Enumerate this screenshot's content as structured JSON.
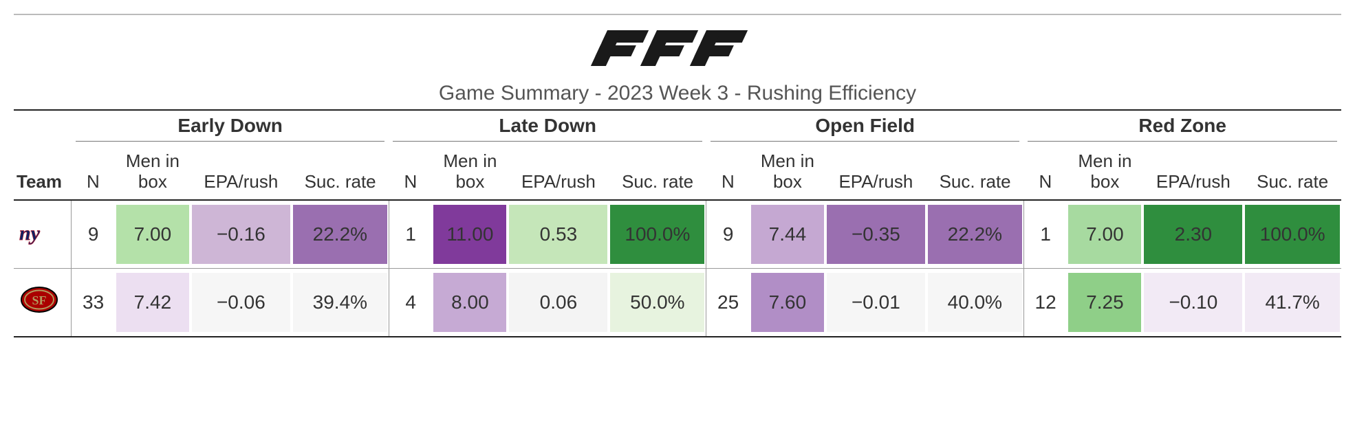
{
  "header": {
    "brand": "PFF",
    "subtitle": "Game Summary - 2023 Week 3 - Rushing Efficiency"
  },
  "columns": {
    "team": "Team",
    "groups": [
      "Early Down",
      "Late Down",
      "Open Field",
      "Red Zone"
    ],
    "sub": {
      "n": "N",
      "box": "Men in\nbox",
      "epa": "EPA/rush",
      "suc": "Suc. rate"
    }
  },
  "teams": [
    {
      "id": "nyg",
      "name": "New York Giants",
      "logo": {
        "type": "nyg",
        "primary": "#0b2265",
        "accent": "#a71930"
      },
      "sections": [
        {
          "n": {
            "value": "9",
            "bg": "#ffffff"
          },
          "box": {
            "value": "7.00",
            "bg": "#b4e1a9"
          },
          "epa": {
            "value": "−0.16",
            "bg": "#ceb6d6"
          },
          "suc": {
            "value": "22.2%",
            "bg": "#9a6fb0"
          }
        },
        {
          "n": {
            "value": "1",
            "bg": "#ffffff"
          },
          "box": {
            "value": "11.00",
            "bg": "#803a9b"
          },
          "epa": {
            "value": "0.53",
            "bg": "#c5e6b9"
          },
          "suc": {
            "value": "100.0%",
            "bg": "#2f8e3e"
          }
        },
        {
          "n": {
            "value": "9",
            "bg": "#ffffff"
          },
          "box": {
            "value": "7.44",
            "bg": "#c5a8d2"
          },
          "epa": {
            "value": "−0.35",
            "bg": "#9a6fb0"
          },
          "suc": {
            "value": "22.2%",
            "bg": "#9a6fb0"
          }
        },
        {
          "n": {
            "value": "1",
            "bg": "#ffffff"
          },
          "box": {
            "value": "7.00",
            "bg": "#a7daa0"
          },
          "epa": {
            "value": "2.30",
            "bg": "#2f8e3e"
          },
          "suc": {
            "value": "100.0%",
            "bg": "#2f8e3e"
          }
        }
      ]
    },
    {
      "id": "sf",
      "name": "San Francisco 49ers",
      "logo": {
        "type": "sf",
        "primary": "#aa0000",
        "accent": "#b3995d"
      },
      "sections": [
        {
          "n": {
            "value": "33",
            "bg": "#ffffff"
          },
          "box": {
            "value": "7.42",
            "bg": "#ecdff1"
          },
          "epa": {
            "value": "−0.06",
            "bg": "#f6f6f6"
          },
          "suc": {
            "value": "39.4%",
            "bg": "#f6f6f6"
          }
        },
        {
          "n": {
            "value": "4",
            "bg": "#ffffff"
          },
          "box": {
            "value": "8.00",
            "bg": "#c6aad4"
          },
          "epa": {
            "value": "0.06",
            "bg": "#f4f4f4"
          },
          "suc": {
            "value": "50.0%",
            "bg": "#e7f3df"
          }
        },
        {
          "n": {
            "value": "25",
            "bg": "#ffffff"
          },
          "box": {
            "value": "7.60",
            "bg": "#b18ec6"
          },
          "epa": {
            "value": "−0.01",
            "bg": "#f6f6f6"
          },
          "suc": {
            "value": "40.0%",
            "bg": "#f6f6f6"
          }
        },
        {
          "n": {
            "value": "12",
            "bg": "#ffffff"
          },
          "box": {
            "value": "7.25",
            "bg": "#8fcf88"
          },
          "epa": {
            "value": "−0.10",
            "bg": "#f2eaf5"
          },
          "suc": {
            "value": "41.7%",
            "bg": "#f2eaf5"
          }
        }
      ]
    }
  ]
}
